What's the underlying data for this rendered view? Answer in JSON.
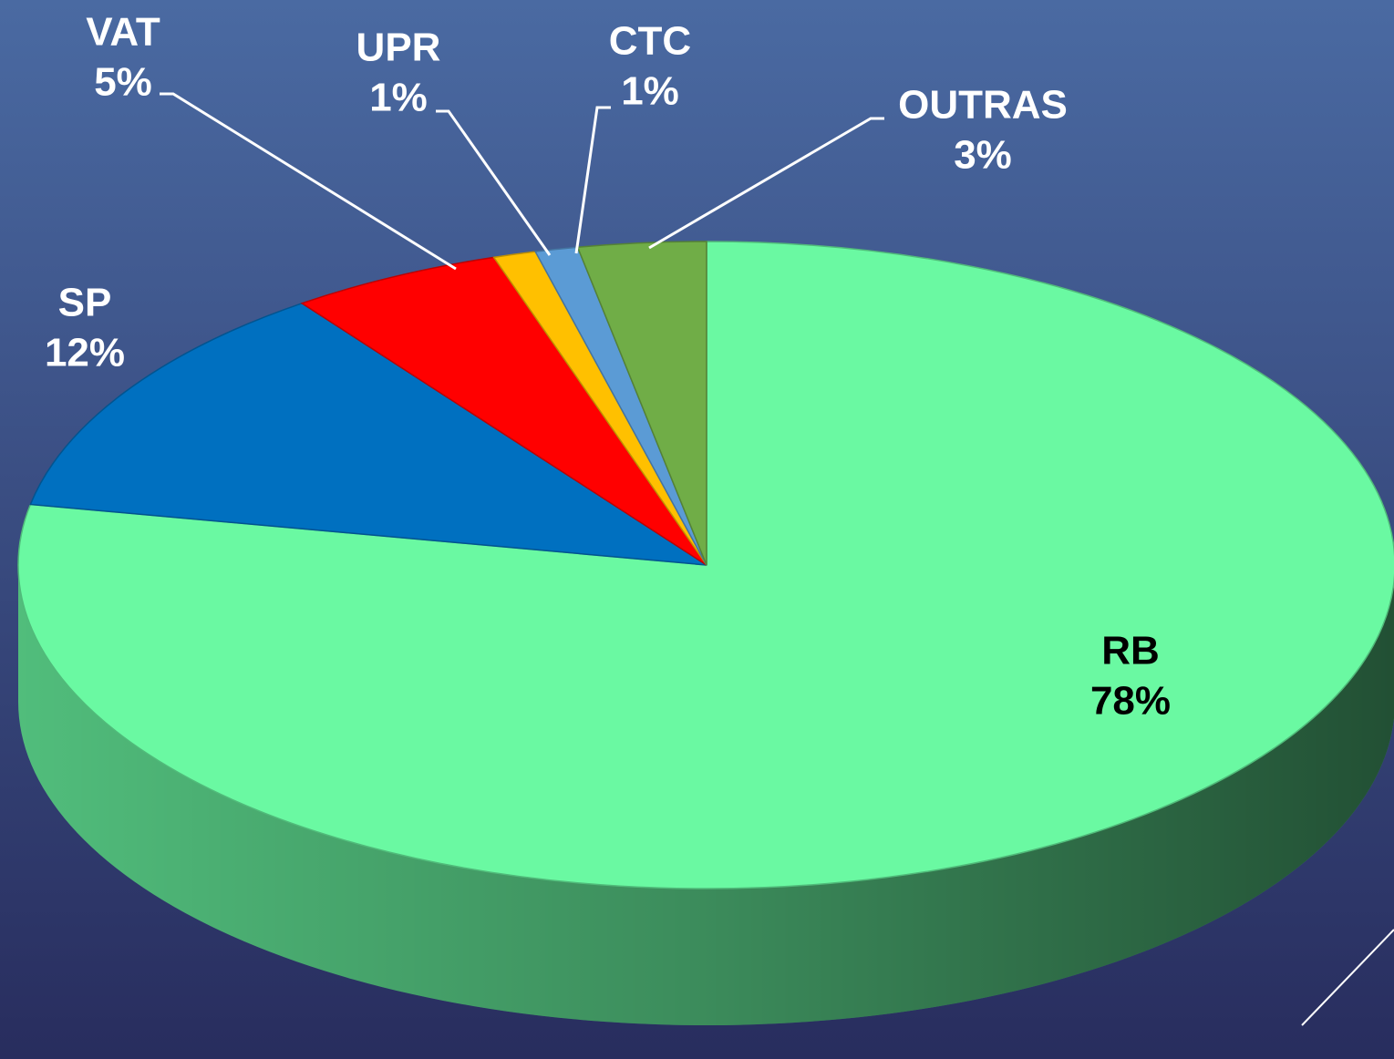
{
  "chart_data": {
    "type": "pie",
    "categories": [
      "RB",
      "SP",
      "VAT",
      "UPR",
      "CTC",
      "OUTRAS"
    ],
    "values": [
      78,
      12,
      5,
      1,
      1,
      3
    ],
    "value_labels": [
      "78%",
      "12%",
      "5%",
      "1%",
      "1%",
      "3%"
    ],
    "colors": [
      "#6af9a2",
      "#0070c0",
      "#ff0000",
      "#ffc000",
      "#5b9bd5",
      "#70ad47"
    ]
  }
}
